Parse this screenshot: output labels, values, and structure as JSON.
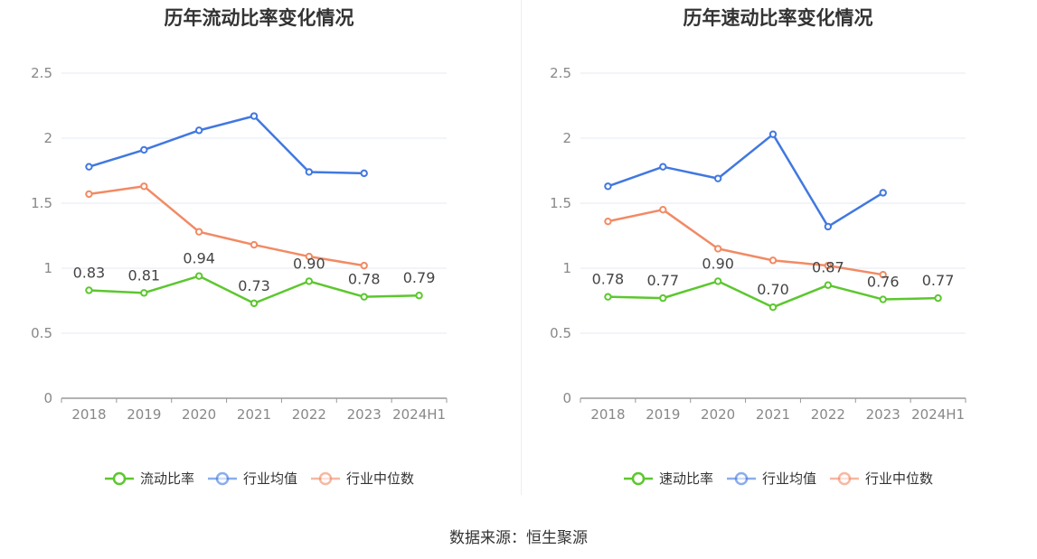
{
  "source_text": "数据来源：恒生聚源",
  "colors": {
    "main": "#5cc72e",
    "avg": "#4178e0",
    "median": "#f28a64"
  },
  "chart_data": [
    {
      "type": "line",
      "title": "历年流动比率变化情况",
      "categories": [
        "2018",
        "2019",
        "2020",
        "2021",
        "2022",
        "2023",
        "2024H1"
      ],
      "ylim": [
        0,
        2.5
      ],
      "yticks": [
        "0",
        "0.5",
        "1",
        "1.5",
        "2",
        "2.5"
      ],
      "grid": true,
      "legend": "bottom",
      "series": [
        {
          "name": "流动比率",
          "values": [
            0.83,
            0.81,
            0.94,
            0.73,
            0.9,
            0.78,
            0.79
          ],
          "labels": [
            "0.83",
            "0.81",
            "0.94",
            "0.73",
            "0.90",
            "0.78",
            "0.79"
          ]
        },
        {
          "name": "行业均值",
          "values": [
            1.78,
            1.91,
            2.06,
            2.17,
            1.74,
            1.73,
            null
          ]
        },
        {
          "name": "行业中位数",
          "values": [
            1.57,
            1.63,
            1.28,
            1.18,
            1.09,
            1.02,
            null
          ]
        }
      ]
    },
    {
      "type": "line",
      "title": "历年速动比率变化情况",
      "categories": [
        "2018",
        "2019",
        "2020",
        "2021",
        "2022",
        "2023",
        "2024H1"
      ],
      "ylim": [
        0,
        2.5
      ],
      "yticks": [
        "0",
        "0.5",
        "1",
        "1.5",
        "2",
        "2.5"
      ],
      "grid": true,
      "legend": "bottom",
      "series": [
        {
          "name": "速动比率",
          "values": [
            0.78,
            0.77,
            0.9,
            0.7,
            0.87,
            0.76,
            0.77
          ],
          "labels": [
            "0.78",
            "0.77",
            "0.90",
            "0.70",
            "0.87",
            "0.76",
            "0.77"
          ]
        },
        {
          "name": "行业均值",
          "values": [
            1.63,
            1.78,
            1.69,
            2.03,
            1.32,
            1.58,
            null
          ]
        },
        {
          "name": "行业中位数",
          "values": [
            1.36,
            1.45,
            1.15,
            1.06,
            1.02,
            0.95,
            null
          ]
        }
      ]
    }
  ]
}
